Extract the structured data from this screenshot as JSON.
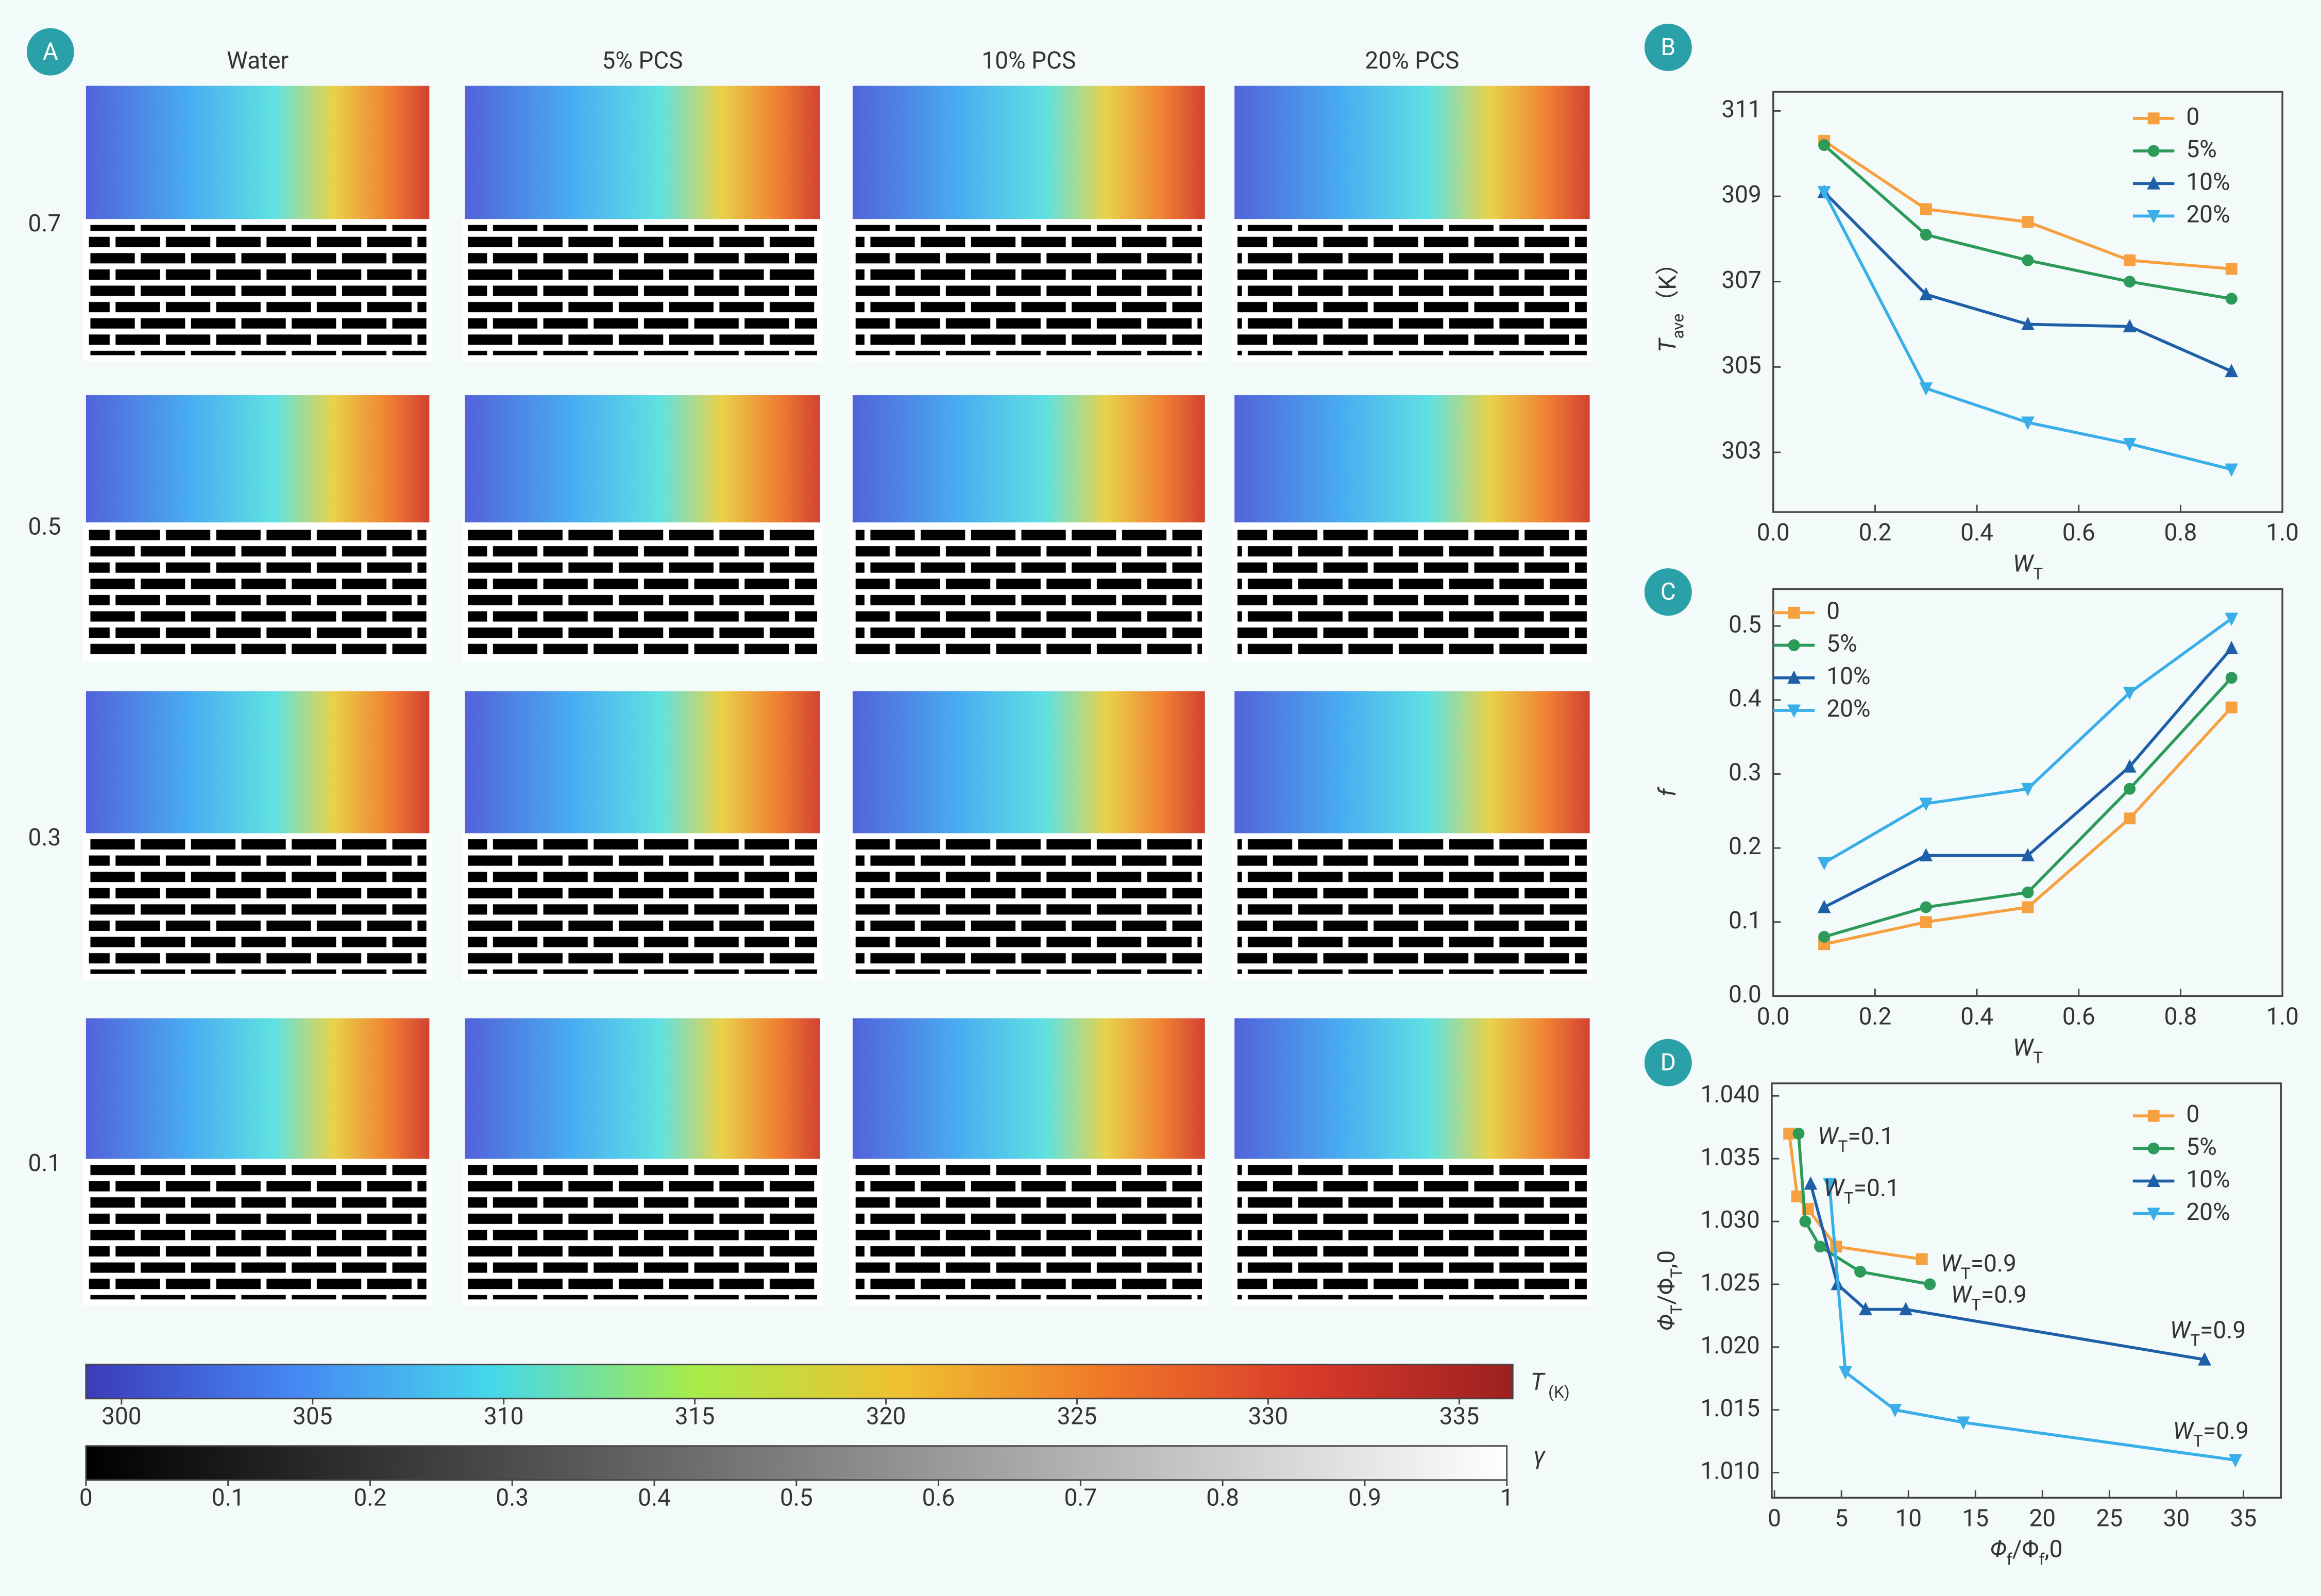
{
  "chart_data": [
    {
      "type": "image_grid",
      "panel": "A",
      "columns": [
        "Water",
        "5% PCS",
        "10% PCS",
        "20% PCS"
      ],
      "rows": [
        "0.7",
        "0.5",
        "0.3",
        "0.1"
      ]
    },
    {
      "type": "line",
      "panel": "B",
      "xlabel": [
        "W",
        "T"
      ],
      "ylabel": [
        "T",
        "ave",
        "（K）"
      ],
      "x": [
        0.1,
        0.3,
        0.5,
        0.7,
        0.9
      ],
      "xlim": [
        0,
        1
      ],
      "ylim": [
        301.6,
        311.45
      ],
      "xticks": [
        {
          "value": 0,
          "label": "0.0"
        },
        0.2,
        0.4,
        0.6,
        0.8,
        {
          "value": 1,
          "label": "1.0"
        }
      ],
      "yticks": [
        303,
        305,
        307,
        309,
        311
      ],
      "legend": "upper right",
      "series": [
        {
          "name": "0",
          "color": "#f7a040",
          "marker": "square",
          "values": [
            310.3,
            308.7,
            308.4,
            307.5,
            307.3
          ]
        },
        {
          "name": "5%",
          "color": "#2e9a5a",
          "marker": "circle",
          "values": [
            310.2,
            308.1,
            307.5,
            307.0,
            306.6
          ]
        },
        {
          "name": "10%",
          "color": "#1f5fa8",
          "marker": "triangle-up",
          "values": [
            309.1,
            306.7,
            306.0,
            305.95,
            304.9
          ]
        },
        {
          "name": "20%",
          "color": "#3aaee8",
          "marker": "triangle-down",
          "values": [
            309.1,
            304.5,
            303.7,
            303.2,
            302.6
          ]
        }
      ]
    },
    {
      "type": "line",
      "panel": "C",
      "xlabel": [
        "W",
        "T"
      ],
      "ylabel": [
        "f"
      ],
      "x": [
        0.1,
        0.3,
        0.5,
        0.7,
        0.9
      ],
      "xlim": [
        0,
        1
      ],
      "ylim": [
        0,
        0.55
      ],
      "xticks": [
        {
          "value": 0,
          "label": "0.0"
        },
        0.2,
        0.4,
        0.6,
        0.8,
        {
          "value": 1,
          "label": "1.0"
        }
      ],
      "yticks": [
        {
          "value": 0,
          "label": "0.0"
        },
        0.1,
        0.2,
        0.3,
        0.4,
        0.5
      ],
      "legend": "upper left",
      "series": [
        {
          "name": "0",
          "color": "#f7a040",
          "marker": "square",
          "values": [
            0.07,
            0.1,
            0.12,
            0.24,
            0.39
          ]
        },
        {
          "name": "5%",
          "color": "#2e9a5a",
          "marker": "circle",
          "values": [
            0.08,
            0.12,
            0.14,
            0.28,
            0.43
          ]
        },
        {
          "name": "10%",
          "color": "#1f5fa8",
          "marker": "triangle-up",
          "values": [
            0.12,
            0.19,
            0.19,
            0.31,
            0.47
          ]
        },
        {
          "name": "20%",
          "color": "#3aaee8",
          "marker": "triangle-down",
          "values": [
            0.18,
            0.26,
            0.28,
            0.41,
            0.51
          ]
        }
      ]
    },
    {
      "type": "line",
      "panel": "D",
      "xlabel": [
        "Φ",
        "f",
        "/Φ",
        "f",
        ",0"
      ],
      "ylabel": [
        "Φ",
        "T",
        "/Φ",
        "T",
        ",0"
      ],
      "xlim": [
        -0.2,
        37.8
      ],
      "ylim": [
        1.008,
        1.041
      ],
      "xticks": [
        0,
        5,
        10,
        15,
        20,
        25,
        30,
        35
      ],
      "yticks": [
        {
          "value": 1.01,
          "label": "1.010"
        },
        1.015,
        {
          "value": 1.02,
          "label": "1.020"
        },
        1.025,
        {
          "value": 1.03,
          "label": "1.030"
        },
        1.035,
        {
          "value": 1.04,
          "label": "1.040"
        }
      ],
      "legend": "upper right",
      "annotations": [
        [
          "W",
          "T",
          "=0.1"
        ],
        [
          "W",
          "T",
          "=0.1"
        ],
        [
          "W",
          "T",
          "=0.9"
        ],
        [
          "W",
          "T",
          "=0.9"
        ],
        [
          "W",
          "T",
          "=0.9"
        ],
        [
          "W",
          "T",
          "=0.9"
        ]
      ],
      "series": [
        {
          "name": "0",
          "color": "#f7a040",
          "marker": "square",
          "x": [
            1.1,
            1.7,
            2.5,
            4.6,
            11.0
          ],
          "values": [
            1.037,
            1.032,
            1.031,
            1.028,
            1.027
          ]
        },
        {
          "name": "5%",
          "color": "#2e9a5a",
          "marker": "circle",
          "x": [
            1.8,
            2.3,
            3.4,
            6.4,
            11.6
          ],
          "values": [
            1.037,
            1.03,
            1.028,
            1.026,
            1.025
          ]
        },
        {
          "name": "10%",
          "color": "#1f5fa8",
          "marker": "triangle-up",
          "x": [
            2.7,
            4.7,
            6.8,
            9.8,
            32.1
          ],
          "values": [
            1.033,
            1.025,
            1.023,
            1.023,
            1.019
          ]
        },
        {
          "name": "20%",
          "color": "#3aaee8",
          "marker": "triangle-down",
          "x": [
            4.1,
            5.3,
            9.0,
            14.1,
            34.4
          ],
          "values": [
            1.033,
            1.018,
            1.015,
            1.014,
            1.011
          ]
        }
      ]
    },
    {
      "type": "colorbar",
      "label": [
        "T",
        " (K)"
      ],
      "xlim": [
        299.07,
        336.4
      ],
      "xticks": [
        300,
        305,
        310,
        315,
        320,
        325,
        330,
        335
      ],
      "colors": [
        "#3d3ab8",
        "#4686f2",
        "#45d8ea",
        "#a8ec48",
        "#f0c030",
        "#f07828",
        "#d83a2a",
        "#9c2020"
      ]
    },
    {
      "type": "colorbar",
      "label": [
        "γ"
      ],
      "xlim": [
        0,
        1
      ],
      "xticks": [
        0,
        0.1,
        0.2,
        0.3,
        0.4,
        0.5,
        0.6,
        0.7,
        0.8,
        0.9,
        1
      ],
      "colors": [
        "#000000",
        "#ffffff"
      ]
    }
  ]
}
